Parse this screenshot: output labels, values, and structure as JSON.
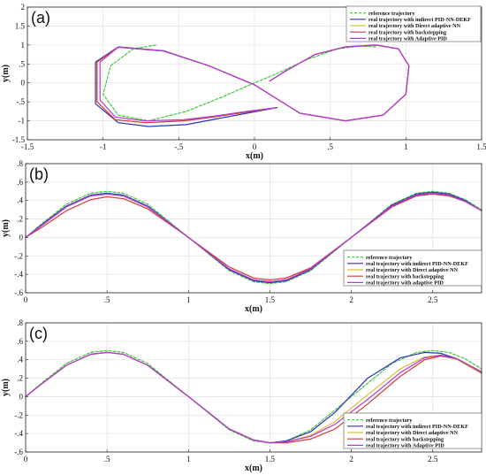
{
  "colors": {
    "reference": "#3ec93e",
    "pidnn": "#2f2fb8",
    "direct": "#d8c23a",
    "backstep": "#d23a3a",
    "adaptive": "#b23ad6"
  },
  "chart_data": [
    {
      "type": "line",
      "panel": "(a)",
      "xlabel": "x(m)",
      "ylabel": "y(m)",
      "xlim": [
        -1.5,
        1.5
      ],
      "ylim": [
        -1.5,
        2
      ],
      "xticks": [
        -1.5,
        -1,
        -0.5,
        0,
        0.5,
        1,
        1.5
      ],
      "yticks": [
        -1.5,
        -1,
        -0.5,
        0,
        0.5,
        1,
        1.5,
        2
      ],
      "grid": true,
      "legend_position": "top-right",
      "series": [
        {
          "name": "reference trajectory",
          "style": "dashed",
          "color_key": "reference",
          "x": [
            0.8,
            0.7,
            0.55,
            0.35,
            0.15,
            0,
            -0.2,
            -0.45,
            -0.7,
            -0.9,
            -1.0,
            -0.95,
            -0.8,
            -0.65
          ],
          "y": [
            0.95,
            0.97,
            0.9,
            0.62,
            0.25,
            0,
            -0.35,
            -0.75,
            -1.0,
            -0.85,
            -0.3,
            0.45,
            0.9,
            1.0
          ]
        },
        {
          "name": "real trajectory with indirect PID-NN-DEKF",
          "style": "solid",
          "color_key": "pidnn",
          "x": [
            0.1,
            0.2,
            0.4,
            0.6,
            0.8,
            0.95,
            1.02,
            1.0,
            0.85,
            0.6,
            0.3,
            0,
            -0.3,
            -0.6,
            -0.9,
            -1.05,
            -1.05,
            -0.9,
            -0.7,
            -0.45,
            -0.25,
            -0.05,
            0.15
          ],
          "y": [
            0.05,
            0.3,
            0.75,
            0.95,
            1.0,
            0.9,
            0.45,
            -0.3,
            -0.85,
            -1.0,
            -0.8,
            -0.05,
            0.45,
            0.85,
            0.95,
            0.55,
            -0.55,
            -1.05,
            -1.15,
            -1.1,
            -0.95,
            -0.8,
            -0.65
          ]
        },
        {
          "name": "real trajectory with Direct adaptive NN",
          "style": "solid",
          "color_key": "direct",
          "x": [
            0.1,
            0.2,
            0.4,
            0.6,
            0.8,
            0.95,
            1.02,
            1.0,
            0.85,
            0.6,
            0.3,
            0,
            -0.3,
            -0.6,
            -0.9,
            -1.04,
            -1.04,
            -0.92,
            -0.72,
            -0.47,
            -0.27,
            -0.07,
            0.13
          ],
          "y": [
            0.05,
            0.3,
            0.75,
            0.95,
            1.0,
            0.9,
            0.45,
            -0.3,
            -0.85,
            -1.0,
            -0.8,
            -0.05,
            0.45,
            0.84,
            0.94,
            0.55,
            -0.5,
            -0.97,
            -1.05,
            -1.0,
            -0.9,
            -0.78,
            -0.66
          ]
        },
        {
          "name": "real trajectory with backstepping",
          "style": "solid",
          "color_key": "backstep",
          "x": [
            0.1,
            0.2,
            0.4,
            0.6,
            0.8,
            0.95,
            1.02,
            1.0,
            0.85,
            0.6,
            0.3,
            0,
            -0.3,
            -0.6,
            -0.9,
            -1.04,
            -1.04,
            -0.92,
            -0.72,
            -0.47,
            -0.27,
            -0.07,
            0.13
          ],
          "y": [
            0.05,
            0.3,
            0.75,
            0.95,
            1.0,
            0.9,
            0.45,
            -0.3,
            -0.85,
            -1.0,
            -0.8,
            -0.05,
            0.45,
            0.84,
            0.94,
            0.55,
            -0.5,
            -0.97,
            -1.05,
            -1.0,
            -0.9,
            -0.78,
            -0.66
          ]
        },
        {
          "name": "real trajectory with Adaptive PID",
          "style": "solid",
          "color_key": "adaptive",
          "x": [
            0.1,
            0.2,
            0.4,
            0.6,
            0.8,
            0.95,
            1.02,
            1.0,
            0.85,
            0.6,
            0.3,
            0,
            -0.3,
            -0.6,
            -0.9,
            -1.02,
            -1.02,
            -0.92,
            -0.72,
            -0.47,
            -0.27,
            -0.07,
            0.13
          ],
          "y": [
            0.05,
            0.3,
            0.75,
            0.95,
            1.0,
            0.9,
            0.45,
            -0.3,
            -0.85,
            -1.0,
            -0.8,
            -0.05,
            0.45,
            0.84,
            0.94,
            0.55,
            -0.45,
            -0.9,
            -1.0,
            -0.97,
            -0.88,
            -0.76,
            -0.66
          ]
        }
      ]
    },
    {
      "type": "line",
      "panel": "(b)",
      "xlabel": "x(m)",
      "ylabel": "y(m)",
      "xlim": [
        0,
        2.8
      ],
      "ylim": [
        -0.6,
        0.8
      ],
      "xticks": [
        0,
        0.5,
        1,
        1.5,
        2,
        2.5
      ],
      "yticks": [
        -0.6,
        -0.4,
        -0.2,
        0,
        0.2,
        0.4,
        0.6,
        0.8
      ],
      "grid": true,
      "legend_position": "bottom-right",
      "series": [
        {
          "name": "reference trajectory",
          "style": "dashed",
          "color_key": "reference",
          "x": [
            0,
            0.1,
            0.25,
            0.4,
            0.5,
            0.6,
            0.75,
            1.0,
            1.25,
            1.4,
            1.5,
            1.6,
            1.75,
            2.0,
            2.25,
            2.4,
            2.5,
            2.6,
            2.7,
            2.8
          ],
          "y": [
            0,
            0.15,
            0.36,
            0.48,
            0.5,
            0.48,
            0.36,
            0,
            -0.36,
            -0.48,
            -0.5,
            -0.48,
            -0.36,
            0,
            0.36,
            0.48,
            0.5,
            0.48,
            0.41,
            0.3
          ]
        },
        {
          "name": "real trajectory with indirect PID-NN-DEKF",
          "style": "solid",
          "color_key": "pidnn",
          "x": [
            0,
            0.1,
            0.25,
            0.4,
            0.5,
            0.6,
            0.75,
            1.0,
            1.25,
            1.4,
            1.5,
            1.6,
            1.75,
            2.0,
            2.25,
            2.4,
            2.5,
            2.6,
            2.7,
            2.8
          ],
          "y": [
            0,
            0.14,
            0.34,
            0.46,
            0.48,
            0.46,
            0.34,
            0,
            -0.35,
            -0.47,
            -0.49,
            -0.47,
            -0.35,
            0,
            0.35,
            0.47,
            0.49,
            0.47,
            0.4,
            0.29
          ]
        },
        {
          "name": "real trajectory with Direct adaptive NN",
          "style": "solid",
          "color_key": "direct",
          "x": [
            0,
            0.1,
            0.25,
            0.4,
            0.5,
            0.6,
            0.75,
            1.0,
            1.25,
            1.4,
            1.5,
            1.6,
            1.75,
            2.0,
            2.25,
            2.4,
            2.5,
            2.6,
            2.7,
            2.8
          ],
          "y": [
            0,
            0.13,
            0.33,
            0.45,
            0.47,
            0.45,
            0.33,
            0,
            -0.34,
            -0.46,
            -0.48,
            -0.46,
            -0.34,
            0,
            0.34,
            0.46,
            0.48,
            0.46,
            0.39,
            0.29
          ]
        },
        {
          "name": "real trajectory with backstepping",
          "style": "solid",
          "color_key": "backstep",
          "x": [
            0,
            0.1,
            0.25,
            0.4,
            0.5,
            0.6,
            0.75,
            1.0,
            1.25,
            1.4,
            1.5,
            1.6,
            1.75,
            2.0,
            2.25,
            2.4,
            2.5,
            2.6,
            2.7,
            2.8
          ],
          "y": [
            0,
            0.11,
            0.29,
            0.41,
            0.44,
            0.42,
            0.31,
            0,
            -0.32,
            -0.44,
            -0.46,
            -0.44,
            -0.33,
            0,
            0.33,
            0.45,
            0.47,
            0.45,
            0.39,
            0.29
          ]
        },
        {
          "name": "real trajectory with adaptive PID",
          "style": "solid",
          "color_key": "adaptive",
          "x": [
            0,
            0.1,
            0.25,
            0.4,
            0.5,
            0.6,
            0.75,
            1.0,
            1.25,
            1.4,
            1.5,
            1.6,
            1.75,
            2.0,
            2.25,
            2.4,
            2.5,
            2.6,
            2.7,
            2.8
          ],
          "y": [
            0,
            0.13,
            0.33,
            0.45,
            0.47,
            0.45,
            0.33,
            0,
            -0.34,
            -0.46,
            -0.48,
            -0.46,
            -0.34,
            0,
            0.34,
            0.46,
            0.48,
            0.46,
            0.39,
            0.29
          ]
        }
      ]
    },
    {
      "type": "line",
      "panel": "(c)",
      "xlabel": "x(m)",
      "ylabel": "y(m)",
      "xlim": [
        0,
        2.8
      ],
      "ylim": [
        -0.6,
        0.8
      ],
      "xticks": [
        0,
        0.5,
        1,
        1.5,
        2,
        2.5
      ],
      "yticks": [
        -0.6,
        -0.4,
        -0.2,
        0,
        0.2,
        0.4,
        0.6,
        0.8
      ],
      "grid": true,
      "legend_position": "bottom-right",
      "series": [
        {
          "name": "reference trajectory",
          "style": "dashed",
          "color_key": "reference",
          "x": [
            0,
            0.1,
            0.25,
            0.4,
            0.5,
            0.6,
            0.75,
            1.0,
            1.25,
            1.4,
            1.5,
            1.6,
            1.75,
            2.0,
            2.25,
            2.4,
            2.5,
            2.6,
            2.7,
            2.8
          ],
          "y": [
            0,
            0.15,
            0.36,
            0.48,
            0.5,
            0.48,
            0.36,
            0,
            -0.36,
            -0.48,
            -0.5,
            -0.48,
            -0.36,
            0,
            0.36,
            0.48,
            0.5,
            0.48,
            0.41,
            0.3
          ]
        },
        {
          "name": "real trajectory with indirect PID-NN-DEKF",
          "style": "solid",
          "color_key": "pidnn",
          "x": [
            0,
            0.1,
            0.25,
            0.4,
            0.5,
            0.6,
            0.75,
            1.0,
            1.25,
            1.4,
            1.5,
            1.6,
            1.75,
            1.9,
            2.1,
            2.3,
            2.45,
            2.55,
            2.65,
            2.8
          ],
          "y": [
            0,
            0.14,
            0.34,
            0.46,
            0.48,
            0.46,
            0.34,
            0,
            -0.35,
            -0.47,
            -0.5,
            -0.48,
            -0.38,
            -0.17,
            0.2,
            0.42,
            0.48,
            0.47,
            0.41,
            0.26
          ]
        },
        {
          "name": "real trajectory with Direct adaptive NN",
          "style": "solid",
          "color_key": "direct",
          "x": [
            0,
            0.1,
            0.25,
            0.4,
            0.5,
            0.6,
            0.75,
            1.0,
            1.25,
            1.4,
            1.5,
            1.6,
            1.75,
            1.9,
            2.1,
            2.3,
            2.45,
            2.55,
            2.65,
            2.8
          ],
          "y": [
            0,
            0.14,
            0.34,
            0.46,
            0.48,
            0.46,
            0.34,
            0,
            -0.35,
            -0.47,
            -0.5,
            -0.49,
            -0.42,
            -0.27,
            0.02,
            0.3,
            0.43,
            0.45,
            0.4,
            0.25
          ]
        },
        {
          "name": "real trajectory with backstepping",
          "style": "solid",
          "color_key": "backstep",
          "x": [
            0,
            0.1,
            0.25,
            0.4,
            0.5,
            0.6,
            0.75,
            1.0,
            1.25,
            1.4,
            1.5,
            1.6,
            1.75,
            1.9,
            2.1,
            2.3,
            2.45,
            2.55,
            2.65,
            2.8
          ],
          "y": [
            0,
            0.14,
            0.34,
            0.46,
            0.48,
            0.46,
            0.34,
            0,
            -0.35,
            -0.47,
            -0.5,
            -0.5,
            -0.46,
            -0.35,
            -0.08,
            0.22,
            0.4,
            0.44,
            0.41,
            0.27
          ]
        },
        {
          "name": "real trajectory with Adaptive PID",
          "style": "solid",
          "color_key": "adaptive",
          "x": [
            0,
            0.1,
            0.25,
            0.4,
            0.5,
            0.6,
            0.75,
            1.0,
            1.25,
            1.4,
            1.5,
            1.6,
            1.75,
            1.9,
            2.1,
            2.3,
            2.45,
            2.55,
            2.65,
            2.8
          ],
          "y": [
            0,
            0.14,
            0.34,
            0.46,
            0.48,
            0.46,
            0.34,
            0,
            -0.35,
            -0.47,
            -0.5,
            -0.49,
            -0.43,
            -0.3,
            -0.03,
            0.26,
            0.42,
            0.45,
            0.41,
            0.26
          ]
        }
      ]
    }
  ]
}
